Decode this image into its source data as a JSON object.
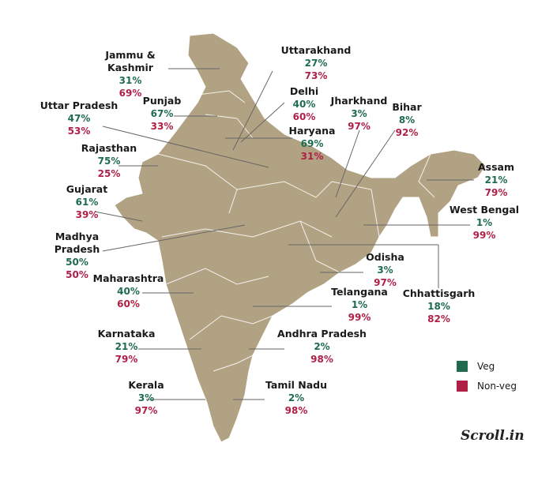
{
  "colors": {
    "veg": "#1e6b4f",
    "nonveg": "#b01f45",
    "map": "#b1a283"
  },
  "states": [
    {
      "name": "Jammu & Kashmir",
      "veg": "31%",
      "nonveg": "69%"
    },
    {
      "name": "Uttarakhand",
      "veg": "27%",
      "nonveg": "73%"
    },
    {
      "name": "Delhi",
      "veg": "40%",
      "nonveg": "60%"
    },
    {
      "name": "Uttar Pradesh",
      "veg": "47%",
      "nonveg": "53%"
    },
    {
      "name": "Punjab",
      "veg": "67%",
      "nonveg": "33%"
    },
    {
      "name": "Jharkhand",
      "veg": "3%",
      "nonveg": "97%"
    },
    {
      "name": "Bihar",
      "veg": "8%",
      "nonveg": "92%"
    },
    {
      "name": "Haryana",
      "veg": "69%",
      "nonveg": "31%"
    },
    {
      "name": "Rajasthan",
      "veg": "75%",
      "nonveg": "25%"
    },
    {
      "name": "Assam",
      "veg": "21%",
      "nonveg": "79%"
    },
    {
      "name": "Gujarat",
      "veg": "61%",
      "nonveg": "39%"
    },
    {
      "name": "West Bengal",
      "veg": "1%",
      "nonveg": "99%"
    },
    {
      "name": "Madhya Pradesh",
      "veg": "50%",
      "nonveg": "50%"
    },
    {
      "name": "Odisha",
      "veg": "3%",
      "nonveg": "97%"
    },
    {
      "name": "Maharashtra",
      "veg": "40%",
      "nonveg": "60%"
    },
    {
      "name": "Telangana",
      "veg": "1%",
      "nonveg": "99%"
    },
    {
      "name": "Chhattisgarh",
      "veg": "18%",
      "nonveg": "82%"
    },
    {
      "name": "Karnataka",
      "veg": "21%",
      "nonveg": "79%"
    },
    {
      "name": "Andhra Pradesh",
      "veg": "2%",
      "nonveg": "98%"
    },
    {
      "name": "Kerala",
      "veg": "3%",
      "nonveg": "97%"
    },
    {
      "name": "Tamil Nadu",
      "veg": "2%",
      "nonveg": "98%"
    }
  ],
  "legend": {
    "veg": "Veg",
    "nonveg": "Non-veg"
  },
  "logo": "Scroll.in"
}
